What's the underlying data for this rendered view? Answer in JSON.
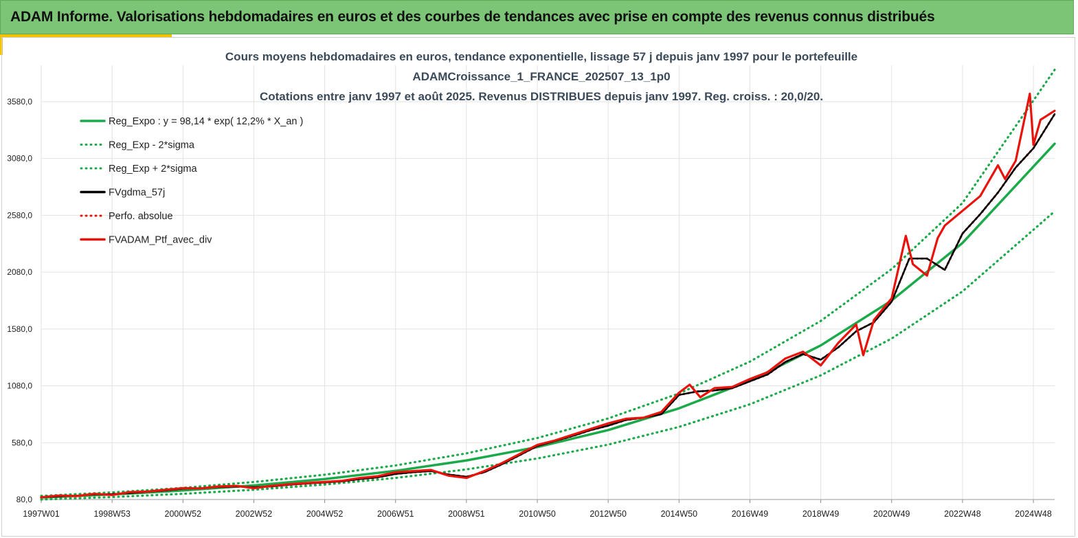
{
  "banner": {
    "title": "ADAM Informe. Valorisations hebdomadaires en euros et des courbes de tendances avec prise en compte des revenus connus distribués"
  },
  "colors": {
    "banner_bg": "#7cc576",
    "accent": "#f2c400",
    "trend": "#1aaa4a",
    "smooth": "#000000",
    "portfolio": "#e8140c"
  },
  "chart_data": {
    "type": "line",
    "title_lines": [
      "Cours moyens hebdomadaires  en euros, tendance exponentielle, lissage 57 j depuis janv 1997 pour le portefeuille",
      "ADAMCroissance_1_FRANCE_202507_13_1p0",
      "Cotations  entre janv 1997 et août 2025. Revenus DISTRIBUES depuis janv 1997. Reg. croiss. : 20,0/20."
    ],
    "ylim": [
      80,
      3900
    ],
    "xlim": [
      1997.0,
      2025.6
    ],
    "y_ticks": [
      "80,0",
      "580,0",
      "1080,0",
      "1580,0",
      "2080,0",
      "2580,0",
      "3080,0",
      "3580,0"
    ],
    "y_tick_values": [
      80,
      580,
      1080,
      1580,
      2080,
      2580,
      3080,
      3580
    ],
    "x_ticks": [
      "1997W01",
      "1998W53",
      "2000W52",
      "2002W52",
      "2004W52",
      "2006W51",
      "2008W51",
      "2010W50",
      "2012W50",
      "2014W50",
      "2016W49",
      "2018W49",
      "2020W49",
      "2022W48",
      "2024W48"
    ],
    "x_tick_values": [
      1997.0,
      1999.0,
      2001.0,
      2003.0,
      2005.0,
      2007.0,
      2009.0,
      2011.0,
      2013.0,
      2015.0,
      2017.0,
      2019.0,
      2021.0,
      2023.0,
      2025.0
    ],
    "grid": true,
    "legend_position": "top-left",
    "legend": [
      {
        "label": "Reg_Expo : y = 98,14 * exp( 12,2% *  X_an )",
        "color": "#1aaa4a",
        "style": "solid"
      },
      {
        "label": "Reg_Exp - 2*sigma",
        "color": "#1aaa4a",
        "style": "dotted"
      },
      {
        "label": "Reg_Exp + 2*sigma",
        "color": "#1aaa4a",
        "style": "dotted"
      },
      {
        "label": "FVgdma_57j",
        "color": "#000000",
        "style": "solid"
      },
      {
        "label": "Perfo. absolue",
        "color": "#e8140c",
        "style": "dotted"
      },
      {
        "label": "FVADAM_Ptf_avec_div",
        "color": "#e8140c",
        "style": "solid"
      }
    ],
    "series": [
      {
        "name": "Reg_Expo : y = 98,14 * exp( 12,2% *  X_an )",
        "color": "#1aaa4a",
        "style": "solid",
        "x": [
          1997.0,
          1999.0,
          2001.0,
          2003.0,
          2005.0,
          2007.0,
          2009.0,
          2011.0,
          2013.0,
          2015.0,
          2017.0,
          2019.0,
          2021.0,
          2023.0,
          2025.6
        ],
        "values": [
          98,
          125,
          160,
          204,
          260,
          332,
          424,
          541,
          691,
          882,
          1124,
          1436,
          1831,
          2337,
          3210
        ]
      },
      {
        "name": "Reg_Exp - 2*sigma",
        "color": "#1aaa4a",
        "style": "dotted",
        "x": [
          1997.0,
          1999.0,
          2001.0,
          2003.0,
          2005.0,
          2007.0,
          2009.0,
          2011.0,
          2013.0,
          2015.0,
          2017.0,
          2019.0,
          2021.0,
          2023.0,
          2025.6
        ],
        "values": [
          80,
          102,
          130,
          166,
          212,
          270,
          345,
          441,
          563,
          719,
          918,
          1172,
          1496,
          1911,
          2615
        ]
      },
      {
        "name": "Reg_Exp + 2*sigma",
        "color": "#1aaa4a",
        "style": "dotted",
        "x": [
          1997.0,
          1999.0,
          2001.0,
          2003.0,
          2005.0,
          2007.0,
          2009.0,
          2011.0,
          2013.0,
          2015.0,
          2017.0,
          2019.0,
          2021.0,
          2023.0,
          2025.6
        ],
        "values": [
          112,
          143,
          183,
          234,
          298,
          380,
          486,
          621,
          793,
          1013,
          1293,
          1651,
          2107,
          2689,
          3860
        ]
      },
      {
        "name": "FVgdma_57j",
        "color": "#000000",
        "style": "solid",
        "x": [
          1997.0,
          1997.5,
          1998.0,
          1998.5,
          1999.0,
          1999.5,
          2000.0,
          2000.5,
          2001.0,
          2001.5,
          2002.0,
          2002.5,
          2003.0,
          2003.5,
          2004.0,
          2004.5,
          2005.0,
          2005.5,
          2006.0,
          2006.5,
          2007.0,
          2007.5,
          2008.0,
          2008.5,
          2009.0,
          2009.5,
          2010.0,
          2010.5,
          2011.0,
          2011.5,
          2012.0,
          2012.5,
          2013.0,
          2013.5,
          2014.0,
          2014.5,
          2015.0,
          2015.5,
          2016.0,
          2016.5,
          2017.0,
          2017.5,
          2018.0,
          2018.5,
          2019.0,
          2019.5,
          2020.0,
          2020.5,
          2021.0,
          2021.5,
          2022.0,
          2022.5,
          2023.0,
          2023.5,
          2024.0,
          2024.5,
          2025.0,
          2025.6
        ],
        "values": [
          100,
          108,
          113,
          125,
          128,
          137,
          148,
          160,
          175,
          180,
          190,
          195,
          188,
          195,
          210,
          220,
          230,
          240,
          260,
          275,
          305,
          320,
          330,
          300,
          280,
          320,
          390,
          470,
          550,
          595,
          640,
          690,
          730,
          780,
          800,
          830,
          1000,
          1030,
          1040,
          1060,
          1120,
          1180,
          1290,
          1360,
          1310,
          1420,
          1560,
          1640,
          1820,
          2200,
          2200,
          2100,
          2420,
          2590,
          2780,
          3000,
          3170,
          3470
        ]
      },
      {
        "name": "Perfo. absolue",
        "color": "#e8140c",
        "style": "dotted",
        "x": [
          1997.0,
          1997.5,
          1998.0,
          1998.5,
          1999.0,
          1999.5,
          2000.0,
          2000.5,
          2001.0,
          2001.5,
          2002.0,
          2002.5,
          2003.0,
          2003.5,
          2004.0,
          2004.5,
          2005.0,
          2005.5,
          2006.0,
          2006.5,
          2007.0,
          2007.5,
          2008.0,
          2008.5,
          2009.0,
          2009.5,
          2010.0,
          2010.5,
          2011.0,
          2011.5,
          2012.0,
          2012.5,
          2013.0,
          2013.5,
          2014.0,
          2014.5,
          2015.0,
          2015.5,
          2016.0,
          2016.5,
          2017.0,
          2017.5,
          2018.0,
          2018.5,
          2019.0,
          2019.5,
          2020.0,
          2020.5,
          2021.0,
          2021.5,
          2022.0,
          2022.5,
          2023.0,
          2023.5,
          2024.0,
          2024.5,
          2025.0,
          2025.6
        ],
        "values": [
          100,
          108,
          113,
          125,
          128,
          137,
          148,
          160,
          175,
          180,
          190,
          195,
          188,
          195,
          210,
          220,
          230,
          240,
          260,
          275,
          305,
          320,
          330,
          300,
          280,
          320,
          390,
          470,
          550,
          595,
          640,
          690,
          730,
          780,
          800,
          830,
          1000,
          1030,
          1040,
          1060,
          1120,
          1180,
          1290,
          1360,
          1310,
          1420,
          1560,
          1640,
          1820,
          2200,
          2200,
          2100,
          2420,
          2590,
          2780,
          3000,
          3170,
          3470
        ]
      },
      {
        "name": "FVADAM_Ptf_avec_div",
        "color": "#e8140c",
        "style": "solid",
        "x": [
          1997.0,
          1997.5,
          1998.0,
          1998.5,
          1999.0,
          1999.5,
          2000.0,
          2000.5,
          2001.0,
          2001.5,
          2002.0,
          2002.5,
          2003.0,
          2003.5,
          2004.0,
          2004.5,
          2005.0,
          2005.5,
          2006.0,
          2006.5,
          2007.0,
          2007.5,
          2008.0,
          2008.5,
          2009.0,
          2009.5,
          2010.0,
          2010.5,
          2011.0,
          2011.5,
          2012.0,
          2012.5,
          2013.0,
          2013.5,
          2014.0,
          2014.5,
          2015.0,
          2015.3,
          2015.6,
          2016.0,
          2016.5,
          2017.0,
          2017.5,
          2018.0,
          2018.5,
          2019.0,
          2019.5,
          2020.0,
          2020.2,
          2020.5,
          2021.0,
          2021.4,
          2021.6,
          2022.0,
          2022.3,
          2022.5,
          2023.0,
          2023.5,
          2024.0,
          2024.2,
          2024.5,
          2024.9,
          2025.0,
          2025.2,
          2025.6
        ],
        "values": [
          100,
          115,
          110,
          130,
          120,
          145,
          150,
          165,
          180,
          178,
          195,
          200,
          180,
          200,
          215,
          225,
          235,
          245,
          270,
          285,
          320,
          330,
          340,
          290,
          270,
          330,
          400,
          480,
          560,
          600,
          650,
          700,
          750,
          790,
          800,
          850,
          1020,
          1090,
          980,
          1060,
          1070,
          1140,
          1200,
          1320,
          1380,
          1260,
          1460,
          1620,
          1350,
          1660,
          1850,
          2400,
          2150,
          2050,
          2380,
          2490,
          2620,
          2750,
          3020,
          2900,
          3060,
          3650,
          3200,
          3420,
          3500
        ]
      }
    ]
  }
}
